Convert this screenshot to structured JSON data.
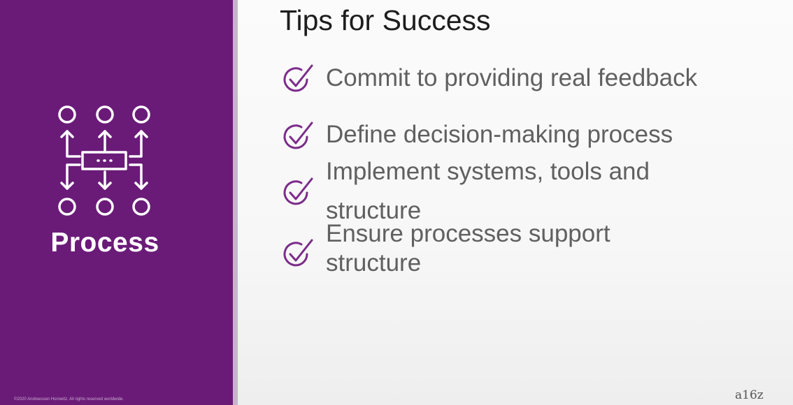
{
  "sidebar": {
    "section_label": "Process",
    "section_icon": "process-flow-icon",
    "copyright": "©2020 Andreessen Horowitz. All rights reserved worldwide.",
    "background_color": "#6a1b78"
  },
  "main": {
    "title": "Tips for Success",
    "tips": [
      {
        "text": "Commit to providing real feedback",
        "icon": "check-circle-icon"
      },
      {
        "text": "Define decision-making process",
        "icon": "check-circle-icon"
      },
      {
        "text": "Implement systems, tools and structure",
        "icon": "check-circle-icon"
      },
      {
        "text": "Ensure processes support structure",
        "icon": "check-circle-icon"
      }
    ],
    "check_color": "#7b2c8a"
  },
  "footer": {
    "logo": "a16z"
  }
}
